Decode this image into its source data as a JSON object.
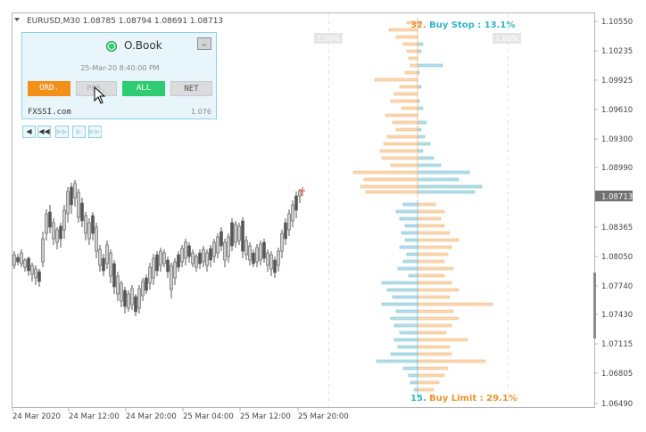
{
  "header": {
    "symbol_info": "EURUSD,M30  1.08785 1.08794 1.08691 1.08713"
  },
  "panel": {
    "title": "O.Book",
    "date": "25-Mar-20 8:40:00 PM",
    "minimize_label": "_",
    "buttons": {
      "ord": "ORD.",
      "pos": "POS.",
      "all": "ALL",
      "net": "NET"
    },
    "brand": "FXSSI.com",
    "version": "1.076"
  },
  "nav": {
    "first": "◀",
    "rewind": "◀◀",
    "forward": "▶▶",
    "next": "▶",
    "last": "▶▶|"
  },
  "orderbook": {
    "top_pct_left": "32.",
    "top_label": "Buy Stop : 13.1%",
    "bottom_pct_left": "15.",
    "bottom_label": "Buy Limit : 29.1%",
    "left_level": "1.00%",
    "right_level": "1.00%"
  },
  "price_axis": [
    "1.10550",
    "1.10235",
    "1.09925",
    "1.09610",
    "1.09300",
    "1.08990",
    "1.08365",
    "1.08050",
    "1.07740",
    "1.07430",
    "1.07115",
    "1.06805",
    "1.06490"
  ],
  "current_price": "1.08713",
  "time_axis": [
    "24 Mar 2020",
    "24 Mar 12:00",
    "24 Mar 20:00",
    "25 Mar 04:00",
    "25 Mar 12:00",
    "25 Mar 20:00"
  ],
  "colors": {
    "buy": "#b8dde8",
    "buy_edge": "#6fbfd3",
    "sell": "#fbd7b0",
    "sell_edge": "#efb47a",
    "orange_label": "#f0932b",
    "blue_label": "#33b5cc",
    "ord_active": "#f39019",
    "all_active": "#2ecc71"
  }
}
